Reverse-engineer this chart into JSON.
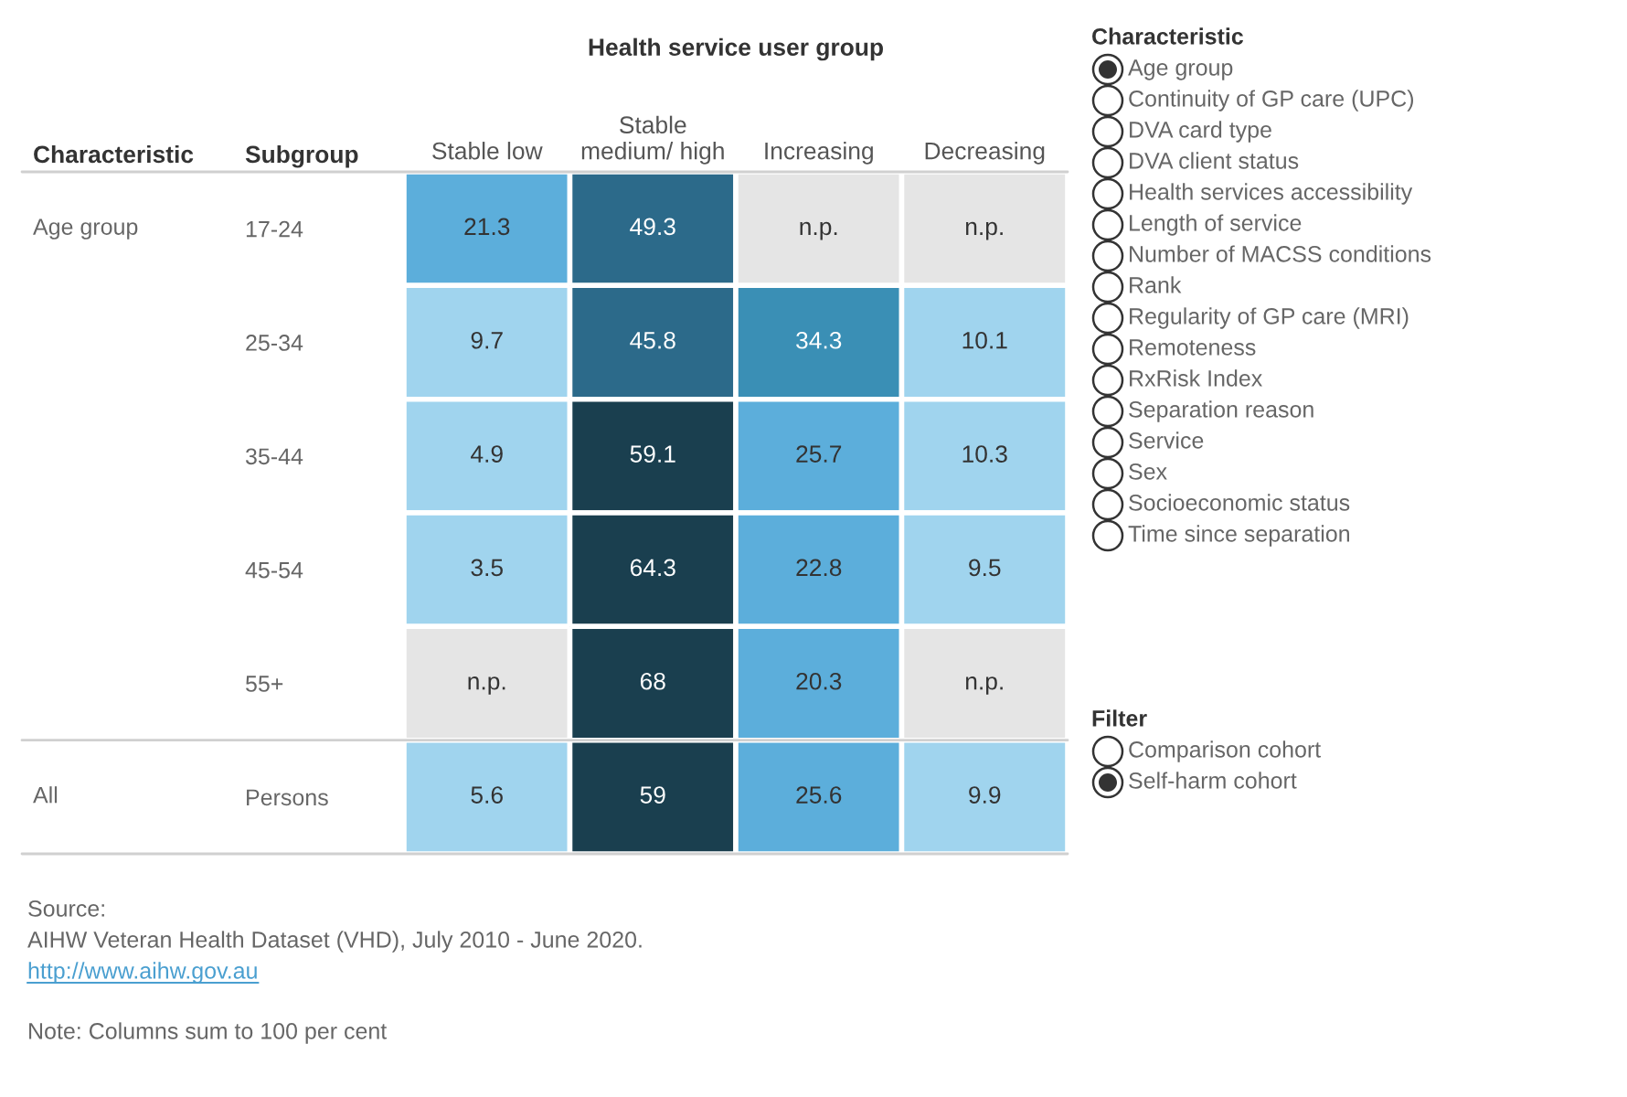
{
  "chart_data": [
    {
      "type": "heatmap",
      "title": "Health service user group",
      "categories": [
        "Stable low",
        "Stable\nmedium/ high",
        "Increasing",
        "Decreasing"
      ],
      "y_categories": [
        "17-24",
        "25-34",
        "35-44",
        "45-54",
        "55+",
        "Persons"
      ],
      "y2_categories": [
        "Age group",
        null,
        null,
        null,
        null,
        "All"
      ],
      "ylabel": "Subgroup",
      "y2label": "Characteristic",
      "cells": [
        [
          21.3,
          49.3,
          null,
          null
        ],
        [
          9.7,
          45.8,
          34.3,
          10.1
        ],
        [
          4.9,
          59.1,
          25.7,
          10.3
        ],
        [
          3.5,
          64.3,
          22.8,
          9.5
        ],
        [
          null,
          68,
          20.3,
          null
        ],
        [
          5.6,
          59,
          25.6,
          9.9
        ]
      ],
      "cell_labels": [
        [
          "21.3",
          "49.3",
          "n.p.",
          "n.p."
        ],
        [
          "9.7",
          "45.8",
          "34.3",
          "10.1"
        ],
        [
          "4.9",
          "59.1",
          "25.7",
          "10.3"
        ],
        [
          "3.5",
          "64.3",
          "22.8",
          "9.5"
        ],
        [
          "n.p.",
          "68",
          "20.3",
          "n.p."
        ],
        [
          "5.6",
          "59",
          "25.6",
          "9.9"
        ]
      ],
      "data_labels": true,
      "annotations": [
        "Source:",
        "AIHW Veteran Health Dataset (VHD), July 2010 - June 2020.",
        "http://www.aihw.gov.au",
        "Note: Columns sum to 100 per cent"
      ]
    },
    {
      "type": "other",
      "title": "Characteristic",
      "annotations": [
        "Age group",
        "Continuity of GP care (UPC)",
        "DVA card type",
        "DVA client status",
        "Health services accessibility",
        "Length of service",
        "Number of MACSS conditions",
        "Rank",
        "Regularity of GP care (MRI)",
        "Remoteness",
        "RxRisk Index",
        "Separation reason",
        "Service",
        "Sex",
        "Socioeconomic status",
        "Time since separation"
      ]
    },
    {
      "type": "other",
      "title": "Filter",
      "annotations": [
        "Comparison cohort",
        "Self-harm cohort"
      ]
    }
  ]
}
